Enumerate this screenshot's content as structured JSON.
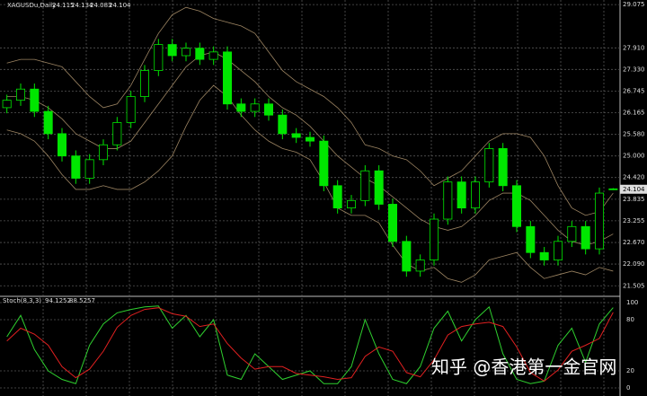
{
  "chart_data": [
    {
      "type": "candlestick",
      "title": "XAGUSDu,Daily",
      "up_color": "#00e600",
      "down_color": "#00e600",
      "band_color": "#9c8462",
      "grid": true,
      "ylim": [
        21.27,
        29.15
      ],
      "yticks": [
        29.075,
        {
          "value": 27.91,
          "label": "27.910"
        },
        {
          "value": 27.33,
          "label": "27.330"
        },
        26.745,
        26.165,
        {
          "value": 25.58,
          "label": "25.580"
        },
        {
          "value": 25,
          "label": "25.000"
        },
        {
          "value": 24.42,
          "label": "24.420"
        },
        23.835,
        23.255,
        {
          "value": 22.67,
          "label": "22.670"
        },
        {
          "value": 22.09,
          "label": "22.090"
        },
        21.505
      ],
      "ohlc": [
        [
          26.3,
          26.65,
          26.15,
          26.5
        ],
        [
          26.5,
          26.95,
          26.35,
          26.8
        ],
        [
          26.8,
          26.95,
          26.05,
          26.2
        ],
        [
          26.2,
          26.35,
          25.45,
          25.6
        ],
        [
          25.6,
          25.75,
          24.85,
          25.0
        ],
        [
          25.0,
          25.15,
          24.25,
          24.4
        ],
        [
          24.4,
          25.05,
          24.25,
          24.9
        ],
        [
          24.9,
          25.45,
          24.75,
          25.3
        ],
        [
          25.3,
          26.05,
          25.15,
          25.9
        ],
        [
          25.9,
          26.75,
          25.75,
          26.6
        ],
        [
          26.6,
          27.45,
          26.45,
          27.3
        ],
        [
          27.3,
          28.15,
          27.15,
          28.0
        ],
        [
          28.0,
          28.15,
          27.55,
          27.7
        ],
        [
          27.7,
          28.05,
          27.55,
          27.9
        ],
        [
          27.9,
          28.05,
          27.45,
          27.6
        ],
        [
          27.6,
          27.95,
          27.45,
          27.8
        ],
        [
          27.8,
          27.95,
          26.25,
          26.4
        ],
        [
          26.4,
          26.55,
          26.05,
          26.2
        ],
        [
          26.2,
          26.55,
          26.05,
          26.4
        ],
        [
          26.4,
          26.55,
          25.95,
          26.1
        ],
        [
          26.1,
          26.25,
          25.45,
          25.6
        ],
        [
          25.6,
          25.75,
          25.35,
          25.5
        ],
        [
          25.5,
          25.65,
          25.25,
          25.4
        ],
        [
          25.4,
          25.55,
          24.05,
          24.2
        ],
        [
          24.2,
          24.35,
          23.45,
          23.6
        ],
        [
          23.6,
          23.95,
          23.45,
          23.8
        ],
        [
          23.8,
          24.75,
          23.65,
          24.6
        ],
        [
          24.6,
          24.75,
          23.55,
          23.7
        ],
        [
          23.7,
          23.85,
          22.55,
          22.7
        ],
        [
          22.7,
          22.85,
          21.75,
          21.9
        ],
        [
          21.9,
          22.35,
          21.75,
          22.2
        ],
        [
          22.2,
          23.45,
          22.05,
          23.3
        ],
        [
          23.3,
          24.45,
          23.15,
          24.3
        ],
        [
          24.3,
          24.45,
          23.45,
          23.6
        ],
        [
          23.6,
          24.45,
          23.45,
          24.3
        ],
        [
          24.3,
          25.35,
          24.15,
          25.2
        ],
        [
          25.2,
          25.35,
          24.05,
          24.2
        ],
        [
          24.2,
          24.35,
          22.95,
          23.1
        ],
        [
          23.1,
          23.25,
          22.25,
          22.4
        ],
        [
          22.4,
          22.55,
          22.05,
          22.2
        ],
        [
          22.2,
          22.85,
          22.05,
          22.7
        ],
        [
          22.7,
          23.25,
          22.55,
          23.1
        ],
        [
          23.1,
          23.25,
          22.35,
          22.5
        ],
        [
          22.5,
          24.15,
          22.35,
          24.0
        ],
        [
          24.115,
          24.134,
          24.083,
          24.104
        ]
      ],
      "bands": {
        "upper": [
          27.5,
          27.6,
          27.6,
          27.5,
          27.4,
          27.0,
          26.6,
          26.3,
          26.4,
          26.9,
          27.6,
          28.3,
          28.8,
          29.0,
          28.9,
          28.7,
          28.6,
          28.5,
          28.3,
          27.8,
          27.3,
          27.0,
          26.8,
          26.6,
          26.3,
          25.9,
          25.3,
          25.2,
          25.0,
          24.9,
          24.6,
          24.2,
          24.4,
          24.6,
          25.0,
          25.4,
          25.6,
          25.6,
          25.5,
          25.0,
          24.2,
          23.6,
          23.4,
          23.5,
          24.0
        ],
        "middle": [
          26.6,
          26.6,
          26.5,
          26.3,
          26.0,
          25.6,
          25.4,
          25.2,
          25.2,
          25.4,
          25.9,
          26.4,
          26.9,
          27.4,
          27.7,
          27.8,
          27.6,
          27.3,
          27.0,
          26.6,
          26.3,
          26.1,
          25.8,
          25.4,
          25.0,
          24.7,
          24.4,
          24.2,
          23.9,
          23.6,
          23.3,
          23.1,
          23.0,
          23.1,
          23.4,
          23.8,
          24.0,
          24.0,
          23.8,
          23.4,
          23.0,
          22.7,
          22.6,
          22.7,
          22.9
        ],
        "lower": [
          25.7,
          25.6,
          25.4,
          25.0,
          24.5,
          24.1,
          24.1,
          24.2,
          24.1,
          24.1,
          24.3,
          24.6,
          25.0,
          25.8,
          26.5,
          26.9,
          26.6,
          26.1,
          25.7,
          25.4,
          25.2,
          25.1,
          24.9,
          24.3,
          23.6,
          23.4,
          23.4,
          23.2,
          22.6,
          22.1,
          21.9,
          22.0,
          21.7,
          21.6,
          21.8,
          22.2,
          22.3,
          22.4,
          22.0,
          21.7,
          21.8,
          21.9,
          21.8,
          22.0,
          21.9
        ]
      }
    },
    {
      "type": "line",
      "title": "Stoch(8,3,3)",
      "ylim": [
        0,
        100
      ],
      "yticks": [
        0,
        20,
        80,
        100
      ],
      "grid": true,
      "series": [
        {
          "color": "#2fd02f",
          "values": [
            60,
            85,
            45,
            20,
            10,
            5,
            50,
            75,
            88,
            92,
            95,
            96,
            70,
            85,
            60,
            80,
            15,
            10,
            40,
            25,
            10,
            15,
            20,
            5,
            5,
            25,
            80,
            40,
            10,
            5,
            25,
            70,
            90,
            55,
            80,
            95,
            40,
            10,
            5,
            8,
            50,
            70,
            30,
            75,
            94.1252
          ]
        },
        {
          "color": "#e02020",
          "values": [
            55,
            70,
            63,
            50,
            25,
            12,
            22,
            43,
            71,
            85,
            92,
            94,
            87,
            84,
            72,
            75,
            52,
            35,
            22,
            25,
            25,
            17,
            15,
            13,
            10,
            12,
            37,
            48,
            43,
            18,
            13,
            33,
            62,
            72,
            75,
            77,
            72,
            48,
            18,
            8,
            21,
            43,
            50,
            58,
            88.5257
          ]
        }
      ]
    }
  ],
  "watermark": "知乎 @香港第一金官网"
}
